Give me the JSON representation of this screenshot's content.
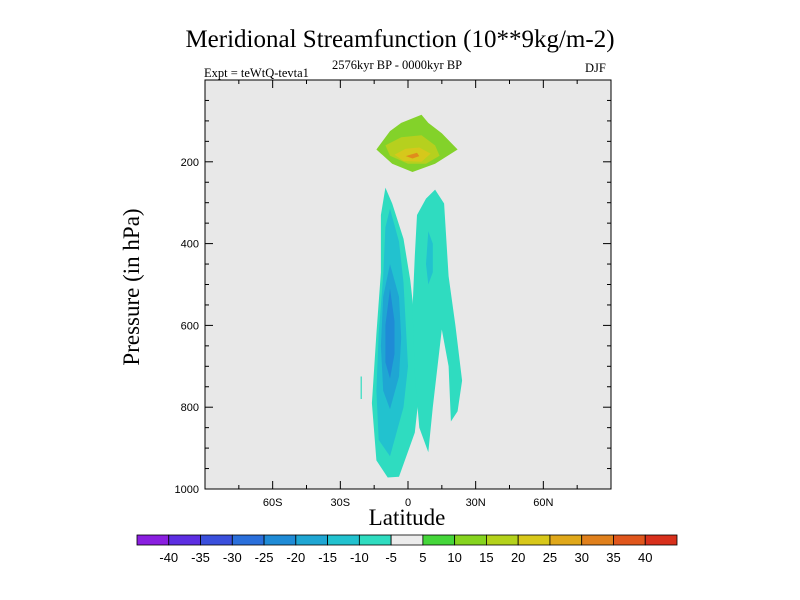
{
  "chart_data": {
    "type": "heatmap",
    "title": "Meridional Streamfunction (10**9kg/m-2)",
    "left_string": "Expt = teWtQ-tevta1",
    "center_string": "2576kyr BP - 0000kyr BP",
    "right_string": "DJF",
    "xlabel": "Latitude",
    "ylabel": "Pressure (in hPa)",
    "xlim": [
      -90,
      90
    ],
    "ylim": [
      1000,
      0
    ],
    "x_ticks": [
      {
        "value": -60,
        "label": "60S"
      },
      {
        "value": -30,
        "label": "30S"
      },
      {
        "value": 0,
        "label": "0"
      },
      {
        "value": 30,
        "label": "30N"
      },
      {
        "value": 60,
        "label": "60N"
      }
    ],
    "y_ticks": [
      {
        "value": 200,
        "label": "200"
      },
      {
        "value": 400,
        "label": "400"
      },
      {
        "value": 600,
        "label": "600"
      },
      {
        "value": 800,
        "label": "800"
      },
      {
        "value": 1000,
        "label": "1000"
      }
    ],
    "colorbar": {
      "levels": [
        "-40",
        "-35",
        "-30",
        "-25",
        "-20",
        "-15",
        "-10",
        "-5",
        "5",
        "10",
        "15",
        "20",
        "25",
        "30",
        "35",
        "40"
      ],
      "colors": [
        "#8a1fe0",
        "#5d2ee2",
        "#3a4fdc",
        "#2a6fdb",
        "#1f8bd6",
        "#1fa6d3",
        "#22c2cf",
        "#2fdcc0",
        "#ececec",
        "#45d63a",
        "#86d41f",
        "#b4d21b",
        "#d8c81a",
        "#e0a81a",
        "#e0801c",
        "#e0561c",
        "#d8301c"
      ]
    },
    "contours": [
      {
        "name": "upper-positive-cell",
        "color": "#83d22a",
        "points": [
          [
            6,
            85
          ],
          [
            9,
            105
          ],
          [
            15,
            130
          ],
          [
            22,
            170
          ],
          [
            12,
            205
          ],
          [
            2,
            225
          ],
          [
            -7,
            205
          ],
          [
            -14,
            170
          ],
          [
            -8,
            125
          ],
          [
            -3,
            105
          ]
        ]
      },
      {
        "name": "upper-positive-cell",
        "color": "#b6d01e",
        "points": [
          [
            6,
            135
          ],
          [
            12,
            160
          ],
          [
            14,
            185
          ],
          [
            8,
            205
          ],
          [
            0,
            205
          ],
          [
            -8,
            185
          ],
          [
            -10,
            160
          ],
          [
            -3,
            140
          ]
        ]
      },
      {
        "name": "upper-positive-cell",
        "color": "#d6c81b",
        "points": [
          [
            5,
            165
          ],
          [
            10,
            180
          ],
          [
            6,
            200
          ],
          [
            -2,
            198
          ],
          [
            -6,
            183
          ],
          [
            -1,
            168
          ]
        ]
      },
      {
        "name": "upper-positive-cell",
        "color": "#e08c1c",
        "points": [
          [
            4,
            178
          ],
          [
            5,
            186
          ],
          [
            2,
            192
          ],
          [
            -1,
            186
          ]
        ]
      },
      {
        "name": "tropical-negative-cell",
        "color": "#2fdcc0",
        "points": [
          [
            -10,
            263
          ],
          [
            -7,
            302
          ],
          [
            -2,
            388
          ],
          [
            1,
            490
          ],
          [
            3,
            590
          ],
          [
            4,
            685
          ],
          [
            5,
            762
          ],
          [
            3,
            862
          ],
          [
            -4,
            970
          ],
          [
            -9,
            972
          ],
          [
            -14,
            930
          ],
          [
            -16,
            790
          ],
          [
            -14,
            620
          ],
          [
            -12,
            470
          ],
          [
            -12,
            330
          ]
        ]
      },
      {
        "name": "tropical-negative-cell",
        "color": "#22c2cf",
        "points": [
          [
            -8,
            315
          ],
          [
            -4,
            395
          ],
          [
            -2,
            495
          ],
          [
            -1,
            595
          ],
          [
            0,
            700
          ],
          [
            -2,
            800
          ],
          [
            -8,
            920
          ],
          [
            -13,
            880
          ],
          [
            -14,
            760
          ],
          [
            -13,
            620
          ],
          [
            -11,
            480
          ],
          [
            -10,
            360
          ]
        ]
      },
      {
        "name": "tropical-negative-cell",
        "color": "#1fa6d3",
        "points": [
          [
            -8,
            450
          ],
          [
            -4,
            530
          ],
          [
            -3,
            630
          ],
          [
            -4,
            725
          ],
          [
            -8,
            805
          ],
          [
            -11,
            760
          ],
          [
            -12,
            650
          ],
          [
            -11,
            530
          ]
        ]
      },
      {
        "name": "tropical-negative-cell",
        "color": "#1f8bd6",
        "points": [
          [
            -8,
            510
          ],
          [
            -6,
            590
          ],
          [
            -6,
            670
          ],
          [
            -8,
            730
          ],
          [
            -10,
            690
          ],
          [
            -10,
            600
          ]
        ]
      },
      {
        "name": "northern-negative-lobe",
        "color": "#2fdcc0",
        "points": [
          [
            4,
            330
          ],
          [
            8,
            290
          ],
          [
            12,
            268
          ],
          [
            16,
            302
          ],
          [
            18,
            480
          ],
          [
            21,
            600
          ],
          [
            24,
            735
          ],
          [
            22,
            810
          ],
          [
            19,
            835
          ],
          [
            18,
            700
          ],
          [
            15,
            610
          ],
          [
            11,
            800
          ],
          [
            9,
            910
          ],
          [
            5,
            850
          ],
          [
            3,
            720
          ],
          [
            2,
            560
          ],
          [
            3,
            430
          ]
        ]
      },
      {
        "name": "northern-negative-lobe",
        "color": "#22c2cf",
        "points": [
          [
            9,
            370
          ],
          [
            11,
            400
          ],
          [
            11,
            470
          ],
          [
            9,
            500
          ],
          [
            8,
            450
          ]
        ]
      },
      {
        "name": "isolated-negative-speck",
        "color": "#2fdcc0",
        "points": [
          [
            -21,
            725
          ],
          [
            -20.5,
            725
          ],
          [
            -20.5,
            780
          ],
          [
            -21,
            780
          ]
        ]
      }
    ]
  }
}
